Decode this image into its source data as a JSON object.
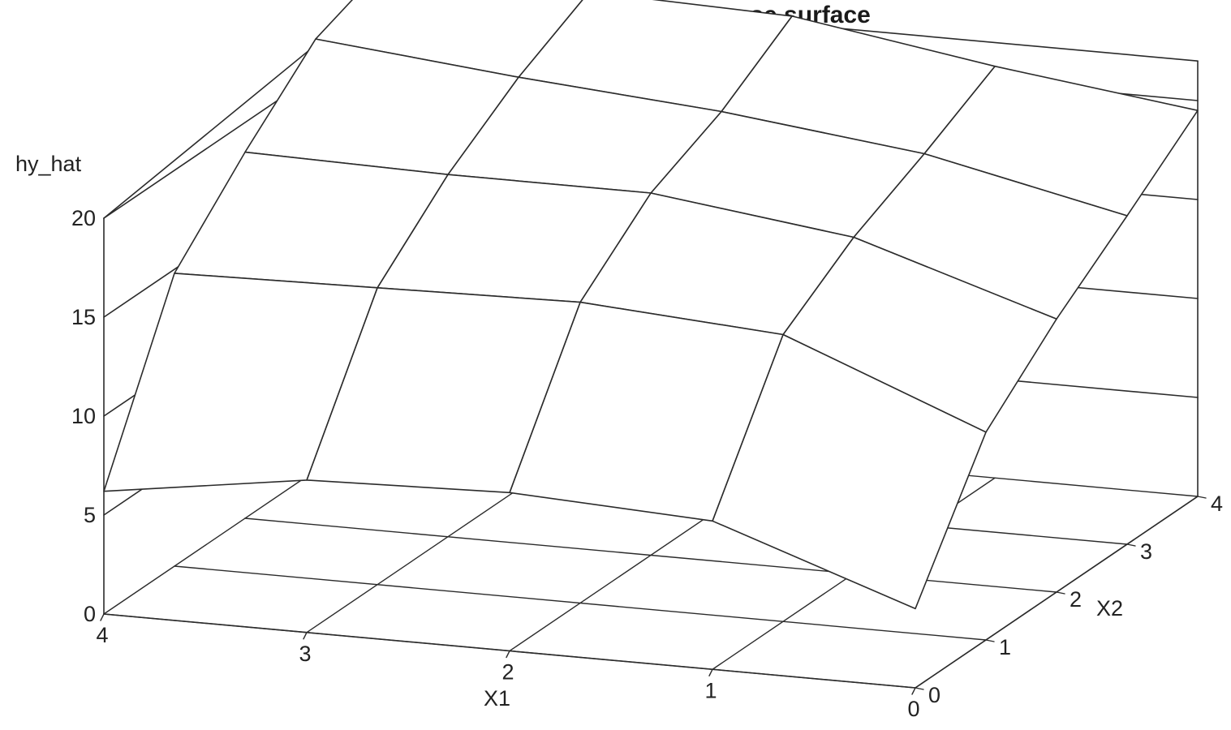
{
  "chart_data": {
    "type": "surface",
    "title": "estimated linearized Hoerl response surface",
    "xlabel": "X1",
    "ylabel": "X2",
    "zlabel": "hy_hat",
    "x_ticks": [
      "4",
      "3",
      "2",
      "1",
      "0"
    ],
    "y_ticks": [
      "0",
      "1",
      "2",
      "3",
      "4"
    ],
    "z_ticks": [
      "0",
      "5",
      "10",
      "15",
      "20"
    ],
    "xlim": [
      0,
      4
    ],
    "ylim": [
      0,
      4
    ],
    "zlim": [
      0,
      22
    ],
    "x_values": [
      0,
      1,
      2,
      3,
      4
    ],
    "y_values": [
      0,
      1,
      2,
      3,
      4
    ],
    "z_grid_note": "rows indexed by X2 (0..4), columns by X1 (0..4)",
    "z": [
      [
        4.0,
        7.5,
        8.0,
        7.7,
        6.2
      ],
      [
        10.5,
        14.5,
        15.2,
        15.0,
        14.8
      ],
      [
        13.8,
        17.0,
        18.3,
        18.3,
        18.5
      ],
      [
        16.6,
        18.8,
        20.0,
        20.8,
        21.8
      ],
      [
        19.5,
        20.8,
        22.4,
        22.7,
        23.2
      ]
    ],
    "colors": {
      "line": "#2b2b2b",
      "surface": "#ffffff"
    }
  }
}
